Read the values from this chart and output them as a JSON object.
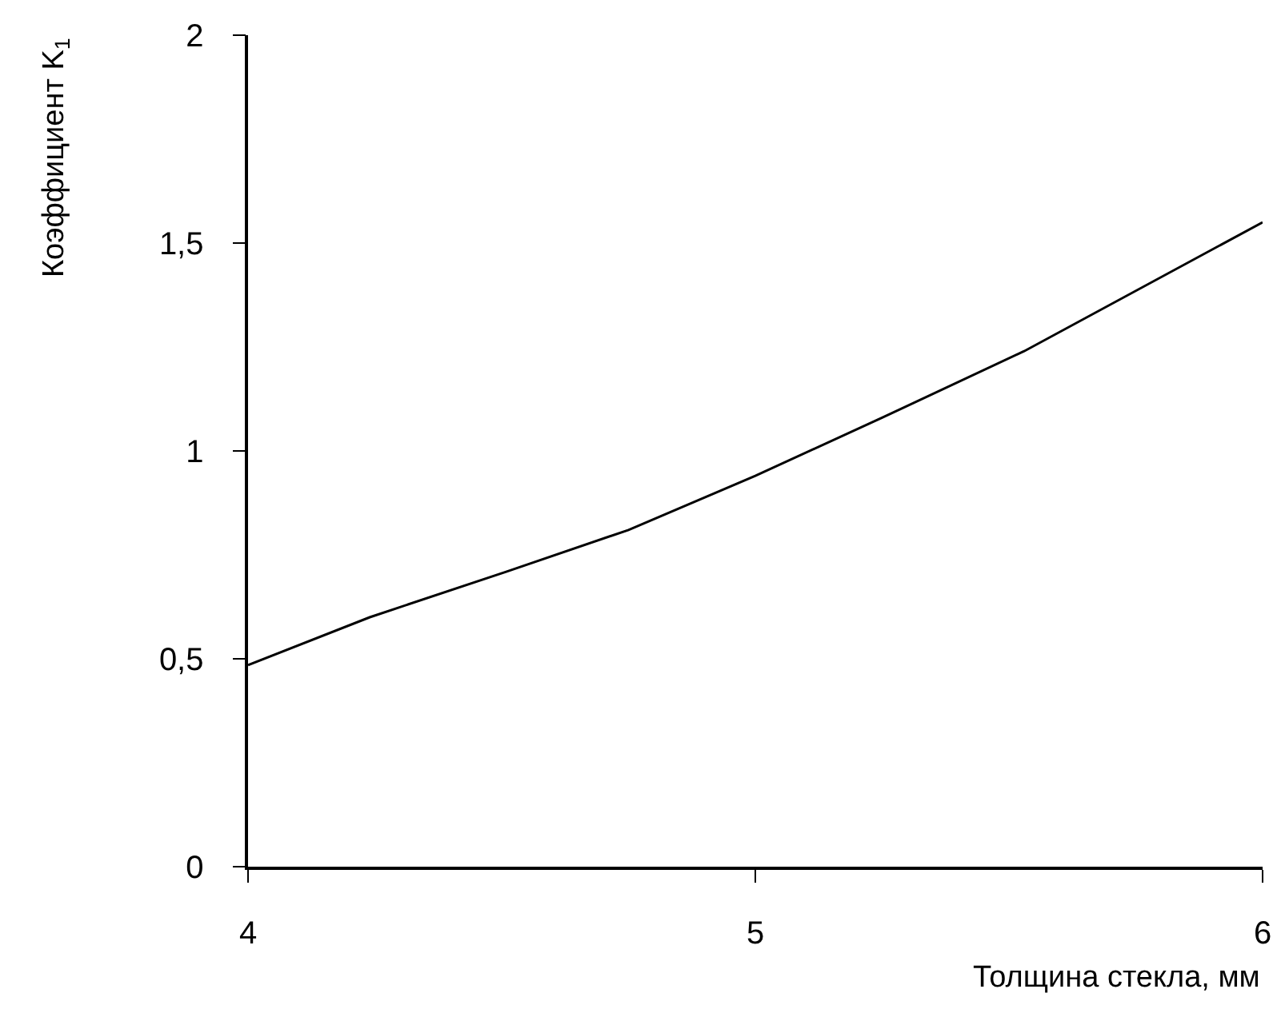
{
  "chart_data": {
    "type": "line",
    "xlabel": "Толщина стекла, мм",
    "ylabel": "Коэффициент K$_{1}$",
    "x": [
      4,
      4.24,
      4.51,
      4.75,
      5,
      5.25,
      5.53,
      6
    ],
    "series": [
      {
        "color": "#000000",
        "values": [
          0.485,
          0.6,
          0.71,
          0.81,
          0.94,
          1.08,
          1.24,
          1.55
        ]
      }
    ],
    "xlim": [
      4,
      6
    ],
    "xticks": [
      4,
      5,
      6
    ],
    "ylim": [
      0,
      2
    ],
    "yticks": [
      0,
      {
        "value": 0.5,
        "label": "0,5"
      },
      1,
      {
        "value": 1.5,
        "label": "1,5"
      },
      2
    ],
    "marker": "none",
    "line_style": "solid"
  }
}
